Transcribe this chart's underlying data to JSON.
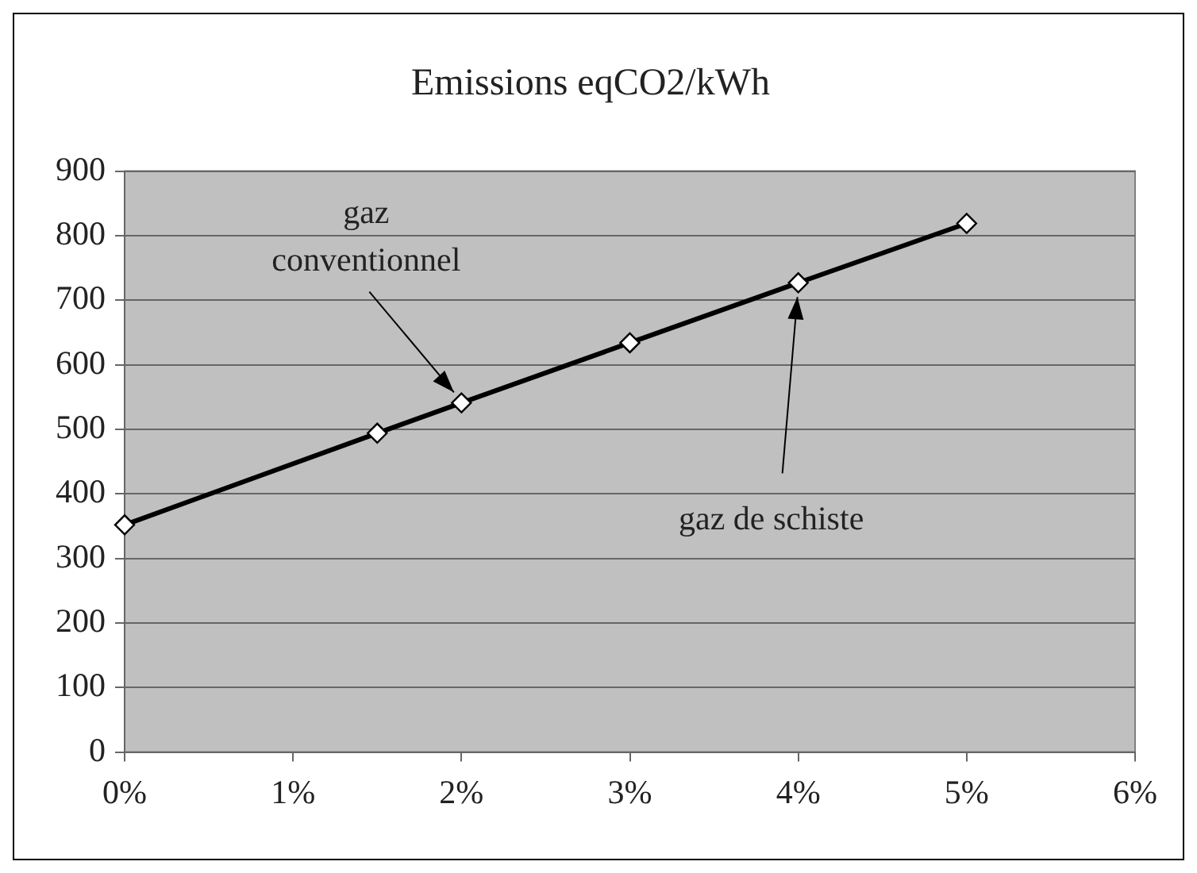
{
  "chart_data": {
    "type": "line",
    "title": "Emissions eqCO2/kWh",
    "x": [
      0,
      1.5,
      2,
      3,
      4,
      5
    ],
    "series": [
      {
        "color": "#000000",
        "values": [
          352,
          494,
          541,
          634,
          727,
          819
        ]
      }
    ],
    "xlim": [
      0,
      6
    ],
    "xticks": [
      {
        "value": 0,
        "label": "0%"
      },
      {
        "value": 1,
        "label": "1%"
      },
      {
        "value": 2,
        "label": "2%"
      },
      {
        "value": 3,
        "label": "3%"
      },
      {
        "value": 4,
        "label": "4%"
      },
      {
        "value": 5,
        "label": "5%"
      },
      {
        "value": 6,
        "label": "6%"
      }
    ],
    "ylim": [
      0,
      900
    ],
    "yticks": [
      0,
      100,
      200,
      300,
      400,
      500,
      600,
      700,
      800,
      900
    ],
    "grid": "y",
    "legend": false,
    "marker": "diamond",
    "line_style": "solid",
    "annotations": [
      {
        "text": "gaz conventionnel",
        "x": 2,
        "y": 541
      },
      {
        "text": "gaz de schiste",
        "x": 4,
        "y": 727
      }
    ]
  }
}
